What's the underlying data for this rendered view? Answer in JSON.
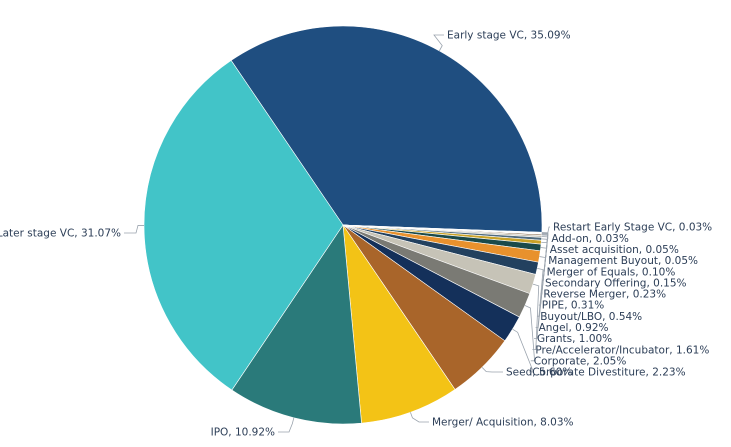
{
  "chart_data": {
    "type": "pie",
    "title": "",
    "slices": [
      {
        "label": "Early stage VC, 35.09%",
        "name": "Early stage VC",
        "value": 35.09,
        "color": "#1f4e80"
      },
      {
        "label": "Restart Early Stage VC, 0.03%",
        "name": "Restart Early Stage VC",
        "value": 0.03,
        "color": "#a9d3e0"
      },
      {
        "label": "Add-on, 0.03%",
        "name": "Add-on",
        "value": 0.03,
        "color": "#b9c6cf"
      },
      {
        "label": "Asset acquisition, 0.05%",
        "name": "Asset acquisition",
        "value": 0.05,
        "color": "#c9b45a"
      },
      {
        "label": "Management Buyout, 0.05%",
        "name": "Management Buyout",
        "value": 0.05,
        "color": "#6f9bbd"
      },
      {
        "label": "Merger of Equals, 0.10%",
        "name": "Merger of Equals",
        "value": 0.1,
        "color": "#7a5a3a"
      },
      {
        "label": "Secondary Offering, 0.15%",
        "name": "Secondary Offering",
        "value": 0.15,
        "color": "#c4c1b4"
      },
      {
        "label": "Reverse Merger, 0.23%",
        "name": "Reverse Merger",
        "value": 0.23,
        "color": "#4f6a7d"
      },
      {
        "label": "PIPE, 0.31%",
        "name": "PIPE",
        "value": 0.31,
        "color": "#c9a227"
      },
      {
        "label": "Buyout/LBO, 0.54%",
        "name": "Buyout/LBO",
        "value": 0.54,
        "color": "#1b4a4a"
      },
      {
        "label": "Angel, 0.92%",
        "name": "Angel",
        "value": 0.92,
        "color": "#e8912d"
      },
      {
        "label": "Grants, 1.00%",
        "name": "Grants",
        "value": 1.0,
        "color": "#23415f"
      },
      {
        "label": "Pre/Accelerator/Incubator, 1.61%",
        "name": "Pre/Accelerator/Incubator",
        "value": 1.61,
        "color": "#c6c3b7"
      },
      {
        "label": "Corporate, 2.05%",
        "name": "Corporate",
        "value": 2.05,
        "color": "#7a7a74"
      },
      {
        "label": "Corporate Divestiture, 2.23%",
        "name": "Corporate Divestiture",
        "value": 2.23,
        "color": "#14305a"
      },
      {
        "label": "Seed, 5.60%",
        "name": "Seed",
        "value": 5.6,
        "color": "#a9652a"
      },
      {
        "label": "Merger/ Acquisition, 8.03%",
        "name": "Merger/ Acquisition",
        "value": 8.03,
        "color": "#f3c316"
      },
      {
        "label": "IPO, 10.92%",
        "name": "IPO",
        "value": 10.92,
        "color": "#2a7a7a"
      },
      {
        "label": "Later stage VC, 31.07%",
        "name": "Later stage VC",
        "value": 31.07,
        "color": "#42c4c8"
      }
    ]
  }
}
